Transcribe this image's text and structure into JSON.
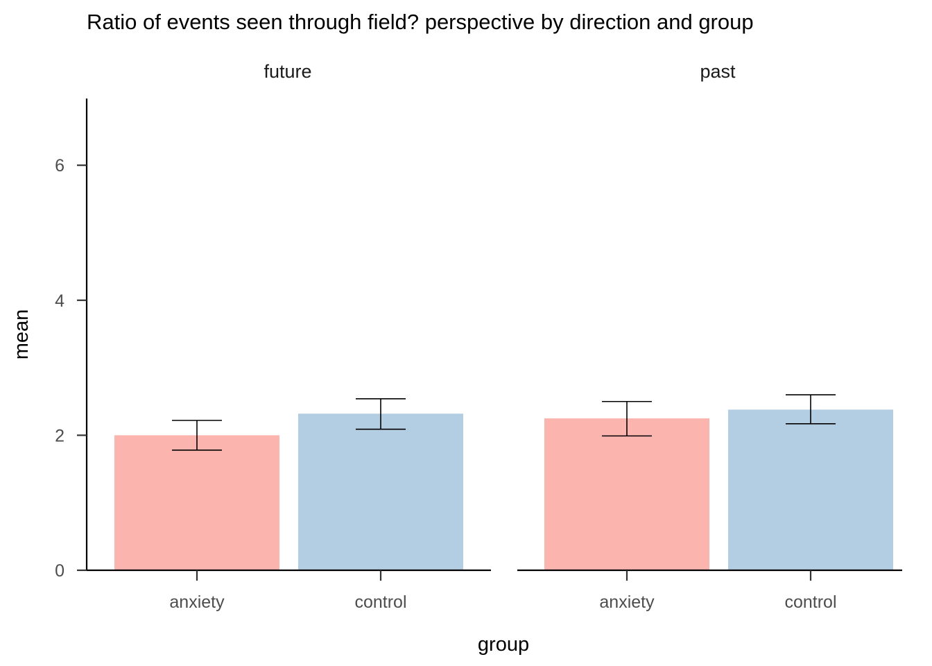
{
  "chart_data": {
    "type": "bar",
    "title": "Ratio of events seen through field? perspective by direction and group",
    "xlabel": "group",
    "ylabel": "mean",
    "ylim": [
      0,
      7
    ],
    "yticks": [
      0,
      2,
      4,
      6
    ],
    "categories": [
      "anxiety",
      "control"
    ],
    "legend": "none",
    "grid": false,
    "colors": {
      "anxiety": "#fbb4ae",
      "control": "#b3cde3"
    },
    "panels": [
      {
        "label": "future",
        "bars": [
          {
            "group": "anxiety",
            "mean": 2.0,
            "lower": 1.78,
            "upper": 2.22
          },
          {
            "group": "control",
            "mean": 2.32,
            "lower": 2.09,
            "upper": 2.54
          }
        ]
      },
      {
        "label": "past",
        "bars": [
          {
            "group": "anxiety",
            "mean": 2.25,
            "lower": 1.99,
            "upper": 2.5
          },
          {
            "group": "control",
            "mean": 2.38,
            "lower": 2.17,
            "upper": 2.6
          }
        ]
      }
    ]
  }
}
